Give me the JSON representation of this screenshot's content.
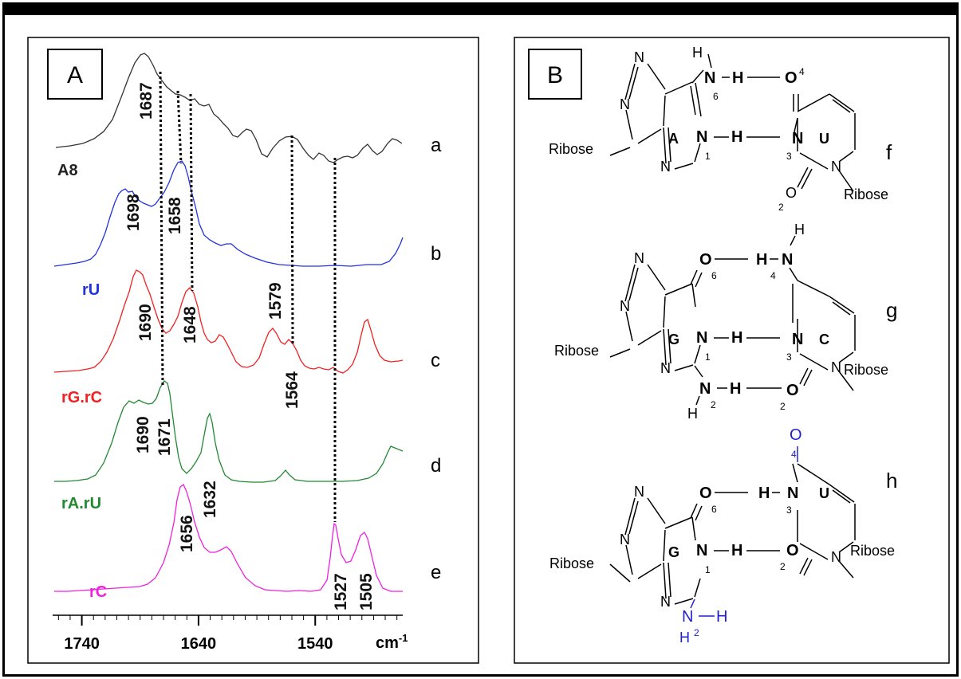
{
  "panelA": {
    "label": "A",
    "spectra": [
      {
        "key": "a",
        "name": "A8",
        "color": "#333333",
        "letter": "a"
      },
      {
        "key": "b",
        "name": "rU",
        "color": "#2233dd",
        "letter": "b"
      },
      {
        "key": "c",
        "name": "rG.rC",
        "color": "#ee2222",
        "letter": "c"
      },
      {
        "key": "d",
        "name": "rA.rU",
        "color": "#228833",
        "letter": "d"
      },
      {
        "key": "e",
        "name": "rC",
        "color": "#ee22dd",
        "letter": "e"
      }
    ],
    "peak_labels": {
      "p1687": "1687",
      "p1698": "1698",
      "p1658": "1658",
      "p1690c": "1690",
      "p1648": "1648",
      "p1579": "1579",
      "p1564": "1564",
      "p1690d": "1690",
      "p1671": "1671",
      "p1632": "1632",
      "p1656": "1656",
      "p1527": "1527",
      "p1505": "1505"
    },
    "axis": {
      "ticks": [
        "1740",
        "1640",
        "1540"
      ],
      "unit_base": "cm",
      "unit_exp": "-1",
      "tick_values": [
        1740,
        1640,
        1540
      ],
      "xlim": [
        1765,
        1465
      ]
    }
  },
  "panelB": {
    "label": "B",
    "pairs": [
      {
        "letter": "f",
        "base1": "A",
        "base2": "U"
      },
      {
        "letter": "g",
        "base1": "G",
        "base2": "C"
      },
      {
        "letter": "h",
        "base1": "G",
        "base2": "U"
      }
    ],
    "atoms": {
      "N": "N",
      "O": "O",
      "H": "H",
      "ribose": "Ribose",
      "n1": "1",
      "n2": "2",
      "n3": "3",
      "n4": "4",
      "n6": "6"
    }
  }
}
